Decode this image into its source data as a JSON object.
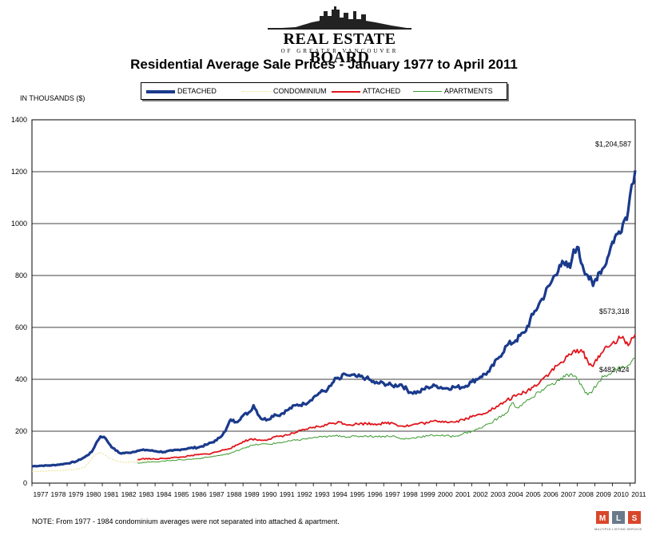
{
  "logo": {
    "title": "REAL ESTATE BOARD",
    "subtitle": "OF GREATER VANCOUVER",
    "icon": "city-skyline-icon"
  },
  "footer": {
    "note": "NOTE:  From 1977 - 1984 condominium averages were not separated into attached & apartment.",
    "mls_letters": [
      "M",
      "L",
      "S"
    ],
    "mls_caption": "MULTIPLE LISTING SERVICE"
  },
  "chart_data": {
    "type": "line",
    "title": "Residential Average Sale Prices  -  January 1977 to April 2011",
    "ylabel": "IN THOUSANDS ($)",
    "xlabel": "",
    "ylim": [
      0,
      1400
    ],
    "yticks": [
      0,
      200,
      400,
      600,
      800,
      1000,
      1200,
      1400
    ],
    "xlim": [
      1977,
      2011.3
    ],
    "xticks": [
      "1977",
      "1978",
      "1979",
      "1980",
      "1981",
      "1982",
      "1983",
      "1984",
      "1985",
      "1986",
      "1987",
      "1988",
      "1989",
      "1990",
      "1991",
      "1992",
      "1993",
      "1994",
      "1995",
      "1996",
      "1997",
      "1998",
      "1999",
      "2000",
      "2001",
      "2002",
      "2003",
      "2004",
      "2005",
      "2006",
      "2007",
      "2008",
      "2009",
      "2010",
      "2011"
    ],
    "grid": "horizontal",
    "legend_position": "top",
    "series": [
      {
        "name": "DETACHED",
        "color": "#1a3a8c",
        "x": [
          1977,
          1977.5,
          1978,
          1978.5,
          1979,
          1979.5,
          1980,
          1980.4,
          1980.7,
          1980.9,
          1981.1,
          1981.3,
          1981.6,
          1982,
          1982.5,
          1983,
          1983.5,
          1984,
          1984.5,
          1985,
          1985.5,
          1986,
          1986.5,
          1987,
          1987.5,
          1988,
          1988.3,
          1988.6,
          1989,
          1989.4,
          1989.6,
          1990,
          1990.4,
          1990.8,
          1991,
          1991.5,
          1992,
          1992.5,
          1993,
          1993.4,
          1993.8,
          1994,
          1994.3,
          1994.5,
          1994.8,
          1995,
          1995.5,
          1996,
          1996.5,
          1997,
          1997.5,
          1998,
          1998.5,
          1999,
          1999.5,
          2000,
          2000.5,
          2001,
          2001.5,
          2002,
          2002.5,
          2003,
          2003.5,
          2004,
          2004.5,
          2005,
          2005.5,
          2006,
          2006.5,
          2007,
          2007.3,
          2007.6,
          2007.8,
          2008,
          2008.3,
          2008.6,
          2008.9,
          2009.2,
          2009.5,
          2009.8,
          2010,
          2010.3,
          2010.6,
          2010.9,
          2011.1,
          2011.3
        ],
        "values": [
          65,
          67,
          68,
          71,
          76,
          83,
          100,
          120,
          160,
          180,
          178,
          160,
          135,
          115,
          117,
          125,
          128,
          123,
          120,
          125,
          130,
          135,
          138,
          150,
          165,
          200,
          245,
          235,
          260,
          275,
          300,
          250,
          245,
          265,
          260,
          280,
          300,
          305,
          330,
          350,
          360,
          375,
          405,
          400,
          420,
          415,
          410,
          405,
          385,
          385,
          375,
          380,
          350,
          350,
          370,
          375,
          365,
          370,
          370,
          390,
          410,
          430,
          480,
          530,
          550,
          580,
          650,
          710,
          770,
          840,
          840,
          830,
          900,
          910,
          840,
          800,
          760,
          810,
          830,
          880,
          930,
          960,
          1000,
          1050,
          1150,
          1205
        ]
      },
      {
        "name": "CONDOMINIUM",
        "color": "#e8df8a",
        "x": [
          1977,
          1978,
          1979,
          1979.6,
          1980,
          1980.3,
          1980.6,
          1980.9,
          1981.3,
          1981.8,
          1982.3,
          1982.8,
          1983.3,
          1983.8
        ],
        "values": [
          45,
          47,
          50,
          55,
          62,
          85,
          110,
          118,
          100,
          85,
          80,
          82,
          85,
          90
        ]
      },
      {
        "name": "ATTACHED",
        "color": "#e0161c",
        "x": [
          1983,
          1983.5,
          1984,
          1984.5,
          1985,
          1985.5,
          1986,
          1986.5,
          1987,
          1987.5,
          1988,
          1988.5,
          1989,
          1989.5,
          1990,
          1990.5,
          1991,
          1991.5,
          1992,
          1992.5,
          1993,
          1993.5,
          1994,
          1994.5,
          1995,
          1995.5,
          1996,
          1996.5,
          1997,
          1997.5,
          1998,
          1998.5,
          1999,
          1999.5,
          2000,
          2000.5,
          2001,
          2001.5,
          2002,
          2002.5,
          2003,
          2003.5,
          2004,
          2004.5,
          2005,
          2005.5,
          2006,
          2006.5,
          2007,
          2007.3,
          2007.6,
          2008,
          2008.3,
          2008.6,
          2008.9,
          2009.2,
          2009.5,
          2009.8,
          2010,
          2010.3,
          2010.6,
          2010.9,
          2011.1,
          2011.3
        ],
        "values": [
          90,
          95,
          92,
          95,
          98,
          100,
          105,
          110,
          112,
          120,
          130,
          140,
          160,
          170,
          165,
          170,
          180,
          185,
          195,
          205,
          215,
          220,
          230,
          235,
          225,
          228,
          230,
          228,
          230,
          232,
          220,
          222,
          230,
          232,
          240,
          238,
          235,
          245,
          255,
          265,
          280,
          295,
          320,
          335,
          350,
          370,
          400,
          430,
          460,
          475,
          495,
          515,
          505,
          470,
          450,
          490,
          510,
          525,
          540,
          550,
          565,
          530,
          560,
          573
        ]
      },
      {
        "name": "APARTMENTS",
        "color": "#3a9a2e",
        "x": [
          1983,
          1983.5,
          1984,
          1984.5,
          1985,
          1985.5,
          1986,
          1986.5,
          1987,
          1987.5,
          1988,
          1988.5,
          1989,
          1989.5,
          1990,
          1990.5,
          1991,
          1991.5,
          1992,
          1992.5,
          1993,
          1993.5,
          1994,
          1994.5,
          1995,
          1995.5,
          1996,
          1996.5,
          1997,
          1997.5,
          1998,
          1998.5,
          1999,
          1999.5,
          2000,
          2000.5,
          2001,
          2001.5,
          2002,
          2002.5,
          2003,
          2003.5,
          2004,
          2004.3,
          2004.6,
          2005,
          2005.5,
          2006,
          2006.5,
          2007,
          2007.3,
          2007.6,
          2008,
          2008.3,
          2008.6,
          2008.9,
          2009.2,
          2009.5,
          2009.8,
          2010,
          2010.3,
          2010.6,
          2010.9,
          2011.1,
          2011.3
        ],
        "values": [
          78,
          80,
          82,
          85,
          88,
          90,
          92,
          95,
          100,
          105,
          110,
          120,
          135,
          145,
          150,
          150,
          155,
          160,
          165,
          170,
          175,
          178,
          180,
          183,
          178,
          180,
          182,
          180,
          180,
          182,
          170,
          172,
          178,
          182,
          185,
          182,
          180,
          190,
          200,
          212,
          230,
          250,
          270,
          310,
          290,
          310,
          330,
          360,
          380,
          395,
          410,
          420,
          400,
          370,
          340,
          360,
          390,
          410,
          420,
          430,
          440,
          450,
          455,
          470,
          483
        ]
      }
    ],
    "annotations": [
      {
        "text": "$1,204,587",
        "series": "DETACHED",
        "x": 2011.3,
        "y": 1205
      },
      {
        "text": "$573,318",
        "series": "ATTACHED",
        "x": 2011.3,
        "y": 573
      },
      {
        "text": "$483,424",
        "series": "APARTMENTS",
        "x": 2011.3,
        "y": 483
      }
    ]
  }
}
